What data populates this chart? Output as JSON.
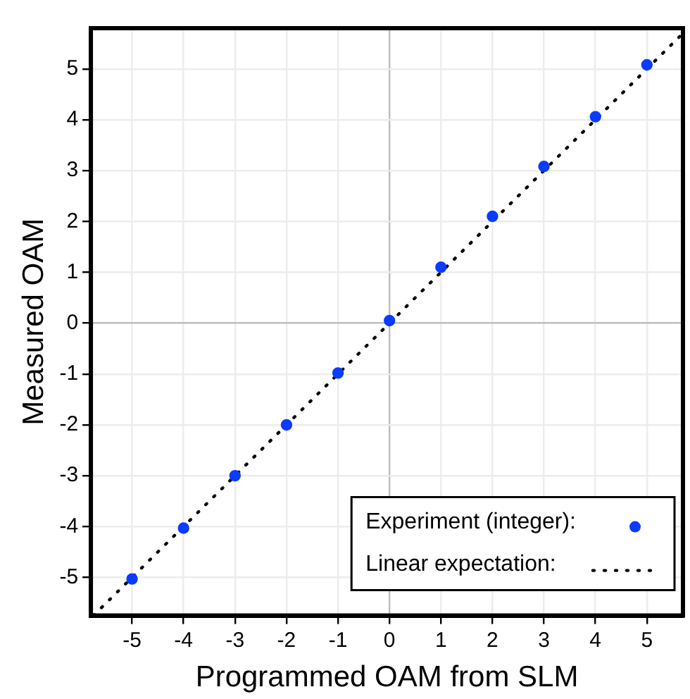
{
  "chart_data": {
    "type": "scatter",
    "xlabel": "Programmed OAM from SLM",
    "ylabel": "Measured OAM",
    "xlim": [
      -5.8,
      5.7
    ],
    "ylim": [
      -5.75,
      5.8
    ],
    "xticks": [
      -5,
      -4,
      -3,
      -2,
      -1,
      0,
      1,
      2,
      3,
      4,
      5
    ],
    "yticks": [
      -5,
      -4,
      -3,
      -2,
      -1,
      0,
      1,
      2,
      3,
      4,
      5
    ],
    "grid": true,
    "legend": "bottom right",
    "series": [
      {
        "name": "Experiment (integer):",
        "marker": "circle",
        "color": "#0a3cff",
        "x": [
          -5,
          -4,
          -3,
          -2,
          -1,
          0,
          1,
          2,
          3,
          4,
          5
        ],
        "values": [
          -5.03,
          -4.03,
          -3.0,
          -2.0,
          -0.98,
          0.05,
          1.1,
          2.1,
          3.08,
          4.06,
          5.08
        ]
      },
      {
        "name": "Linear expectation:",
        "type": "line",
        "marker": "none",
        "line_style": "dotted",
        "color": "#000000",
        "x": [
          -5.75,
          5.7
        ],
        "values": [
          -5.75,
          5.7
        ]
      }
    ]
  }
}
